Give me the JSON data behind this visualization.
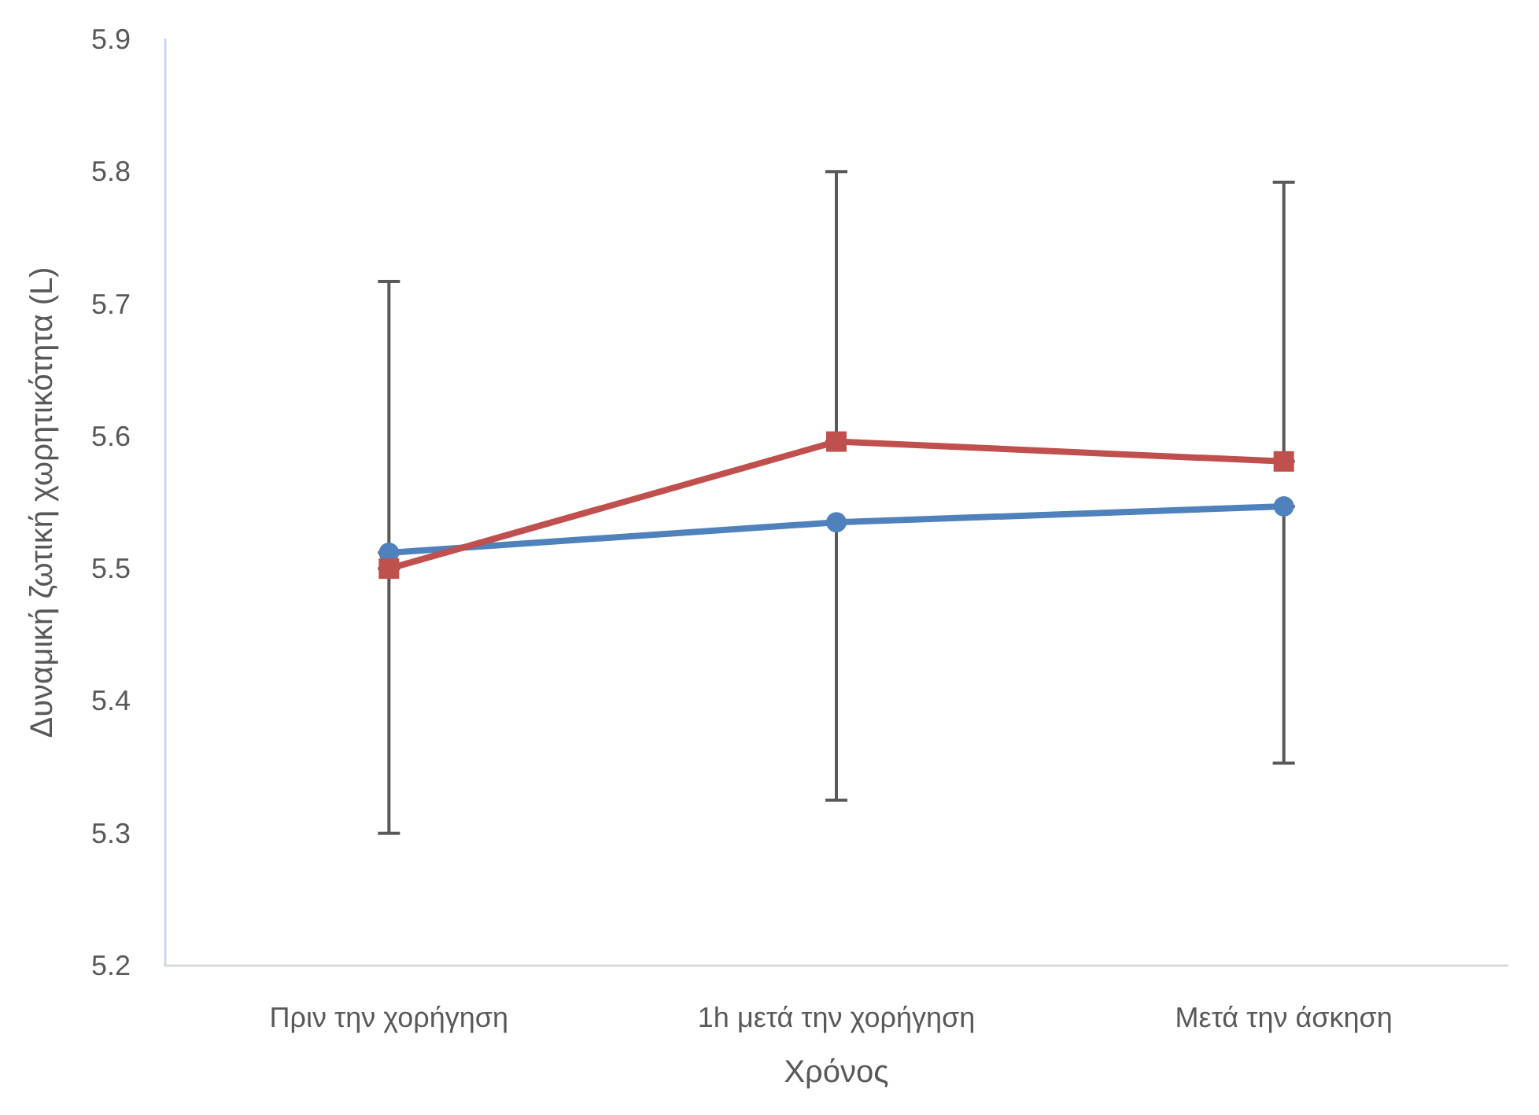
{
  "chart_data": {
    "type": "line",
    "xlabel": "Χρόνος",
    "ylabel": "Δυναμική ζωτική χωρητικότητα (L)",
    "categories": [
      "Πριν την χορήγηση",
      "1h μετά την χορήγηση",
      "Μετά την άσκηση"
    ],
    "series": [
      {
        "color": "#4f81bd",
        "marker": "circle",
        "values": [
          5.512,
          5.535,
          5.547
        ],
        "errors": [
          [
            5.3,
            5.512
          ],
          [
            5.325,
            5.535
          ],
          [
            5.353,
            5.547
          ]
        ]
      },
      {
        "color": "#c0504d",
        "marker": "square",
        "values": [
          5.5,
          5.596,
          5.581
        ],
        "errors": [
          [
            5.5,
            5.717
          ],
          [
            5.596,
            5.8
          ],
          [
            5.581,
            5.792
          ]
        ]
      }
    ],
    "ylim": [
      5.2,
      5.9
    ],
    "yticks": [
      5.2,
      5.3,
      5.4,
      5.5,
      5.6,
      5.7,
      5.8,
      5.9
    ],
    "grid": false,
    "line_style": "solid"
  }
}
